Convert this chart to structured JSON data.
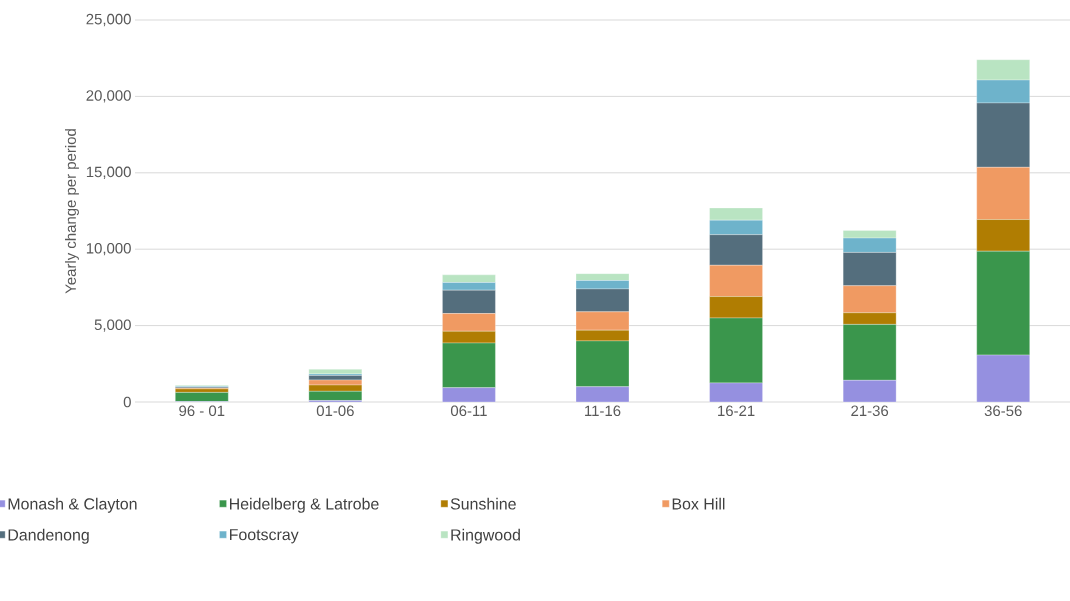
{
  "chart_data": {
    "type": "bar",
    "stacked": true,
    "ylabel": "Yearly  change per period",
    "categories": [
      "96 - 01",
      "01-06",
      "06-11",
      "11-16",
      "16-21",
      "21-36",
      "36-56"
    ],
    "series": [
      {
        "name": "Monash & Clayton",
        "color": "#9590e0",
        "values": [
          30,
          100,
          940,
          1000,
          1250,
          1420,
          3070
        ]
      },
      {
        "name": "Heidelberg & Latrobe",
        "color": "#3a964c",
        "values": [
          600,
          600,
          2920,
          3000,
          4250,
          3660,
          6800
        ]
      },
      {
        "name": "Sunshine",
        "color": "#b07d02",
        "values": [
          230,
          410,
          770,
          700,
          1400,
          760,
          2070
        ]
      },
      {
        "name": "Box Hill",
        "color": "#f09a62",
        "values": [
          60,
          330,
          1160,
          1200,
          2050,
          1770,
          3420
        ]
      },
      {
        "name": "Dandenong",
        "color": "#546e7d",
        "values": [
          60,
          300,
          1530,
          1500,
          2000,
          2180,
          4210
        ]
      },
      {
        "name": "Footscray",
        "color": "#6eb3cb",
        "values": [
          50,
          100,
          500,
          550,
          950,
          940,
          1500
        ]
      },
      {
        "name": "Ringwood",
        "color": "#b9e4c2",
        "values": [
          60,
          300,
          500,
          450,
          800,
          500,
          1330
        ]
      }
    ],
    "ylim": [
      0,
      25000
    ],
    "yticks": [
      0,
      {
        "value": 5000,
        "label": "5,000"
      },
      {
        "value": 10000,
        "label": "10,000"
      },
      {
        "value": 15000,
        "label": "15,000"
      },
      {
        "value": 20000,
        "label": "20,000"
      },
      {
        "value": 25000,
        "label": "25,000"
      }
    ],
    "grid": "y",
    "legend": "bottom"
  }
}
